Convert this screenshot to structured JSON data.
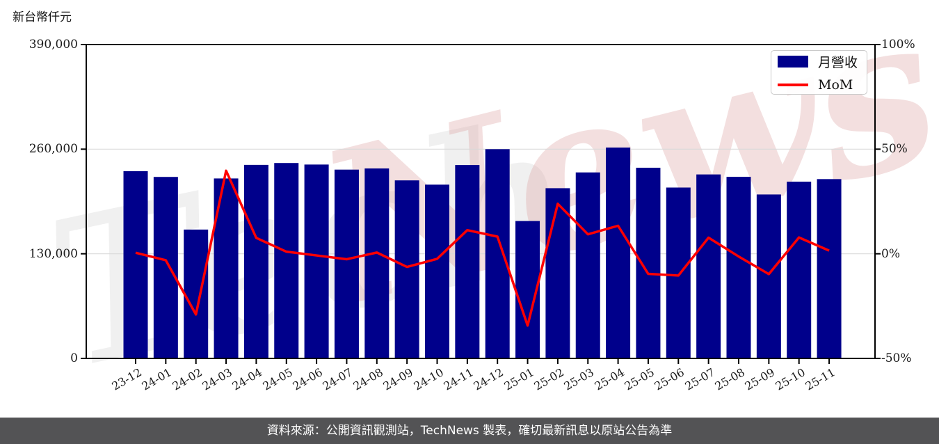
{
  "chart": {
    "unit_label": "新台幣仟元",
    "watermark": {
      "gray_text": "Tech",
      "pink_text": "News"
    },
    "colors": {
      "bar": "#00008b",
      "line": "#ff0000",
      "grid": "#d9d9d9",
      "spine": "#000000",
      "watermark_gray": "#000000",
      "watermark_pink": "#dd9f9f",
      "footer_bg": "#535355"
    }
  },
  "legend": {
    "items": [
      {
        "label": "月營收",
        "type": "bar",
        "color": "#00008b"
      },
      {
        "label": "MoM",
        "type": "line",
        "color": "#ff0000"
      }
    ]
  },
  "footer": {
    "text": "資料來源：公開資訊觀測站，TechNews 製表，確切最新訊息以原站公告為準"
  },
  "chart_data": {
    "type": "bar",
    "title": "",
    "xlabel": "",
    "ylabel": "新台幣仟元",
    "grid": "horizontal",
    "legend_position": "upper-right",
    "categories": [
      "23-12",
      "24-01",
      "24-02",
      "24-03",
      "24-04",
      "24-05",
      "24-06",
      "24-07",
      "24-08",
      "24-09",
      "24-10",
      "24-11",
      "24-12",
      "25-01",
      "25-02",
      "25-03",
      "25-04",
      "25-05",
      "25-06",
      "25-07",
      "25-08",
      "25-09",
      "25-10",
      "25-11"
    ],
    "series": [
      {
        "name": "月營收",
        "type": "bar",
        "axis": "left",
        "color": "#00008b",
        "unit": "NT$k",
        "values": [
          232600,
          225500,
          160100,
          223600,
          240500,
          242800,
          240900,
          234600,
          236000,
          221200,
          215900,
          240300,
          260000,
          170700,
          211500,
          231100,
          262000,
          236900,
          212300,
          228600,
          225600,
          203700,
          219600,
          222800
        ]
      },
      {
        "name": "MoM",
        "type": "line",
        "axis": "right",
        "color": "#ff0000",
        "unit": "%",
        "values": [
          0.5,
          -3.1,
          -29.0,
          39.7,
          7.6,
          1.0,
          -0.8,
          -2.6,
          0.6,
          -6.3,
          -2.4,
          11.3,
          8.2,
          -34.3,
          23.9,
          9.3,
          13.4,
          -9.6,
          -10.4,
          7.7,
          -1.3,
          -9.7,
          7.8,
          1.5
        ]
      }
    ],
    "left_axis": {
      "range": [
        0,
        390000
      ],
      "ticks": [
        0,
        130000,
        260000,
        390000
      ],
      "tick_labels": [
        "0",
        "130,000",
        "260,000",
        "390,000"
      ]
    },
    "right_axis": {
      "range": [
        -50,
        100
      ],
      "ticks": [
        -50,
        0,
        50,
        100
      ],
      "tick_labels": [
        "-50%",
        "0%",
        "50%",
        "100%"
      ]
    }
  }
}
